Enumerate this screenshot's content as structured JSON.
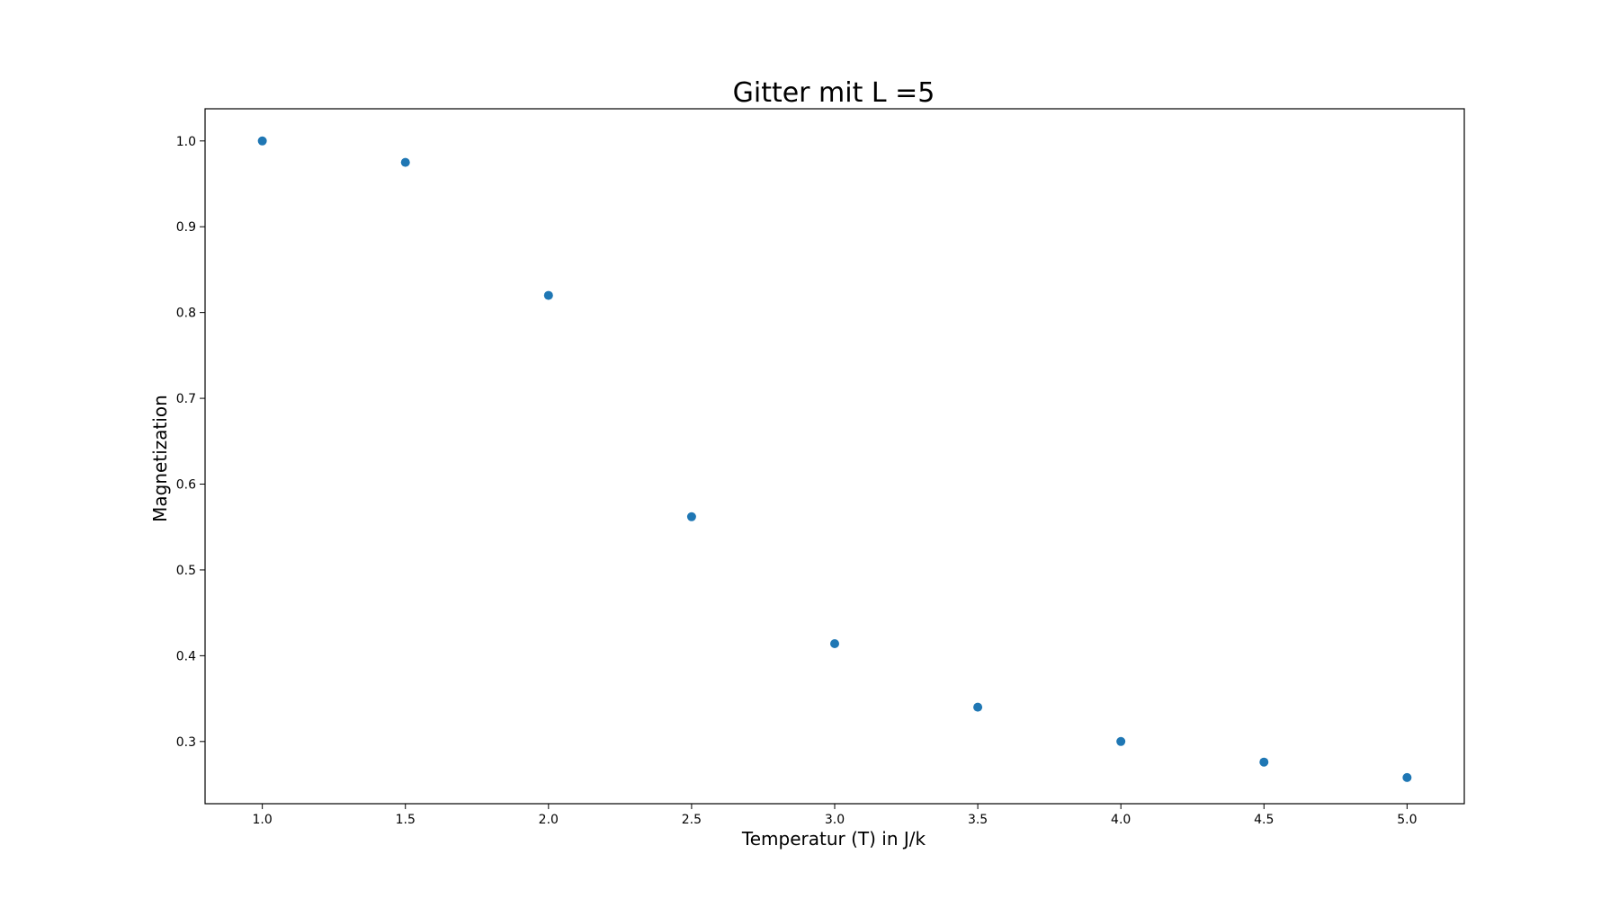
{
  "chart_data": {
    "type": "scatter",
    "title": "Gitter mit L =5",
    "xlabel": "Temperatur (T) in J/k",
    "ylabel": "Magnetization",
    "xlim": [
      0.8,
      5.2
    ],
    "ylim": [
      0.2275,
      1.0375
    ],
    "xticks": [
      "1.0",
      "1.5",
      "2.0",
      "2.5",
      "3.0",
      "3.5",
      "4.0",
      "4.5",
      "5.0"
    ],
    "yticks": [
      "0.3",
      "0.4",
      "0.5",
      "0.6",
      "0.7",
      "0.8",
      "0.9",
      "1.0"
    ],
    "grid": false,
    "legend": "none",
    "series": [
      {
        "color": "#1f77b4",
        "x": [
          1.0,
          1.5,
          2.0,
          2.5,
          3.0,
          3.5,
          4.0,
          4.5,
          5.0
        ],
        "y": [
          1.0,
          0.975,
          0.82,
          0.562,
          0.414,
          0.34,
          0.3,
          0.276,
          0.258
        ]
      }
    ]
  }
}
